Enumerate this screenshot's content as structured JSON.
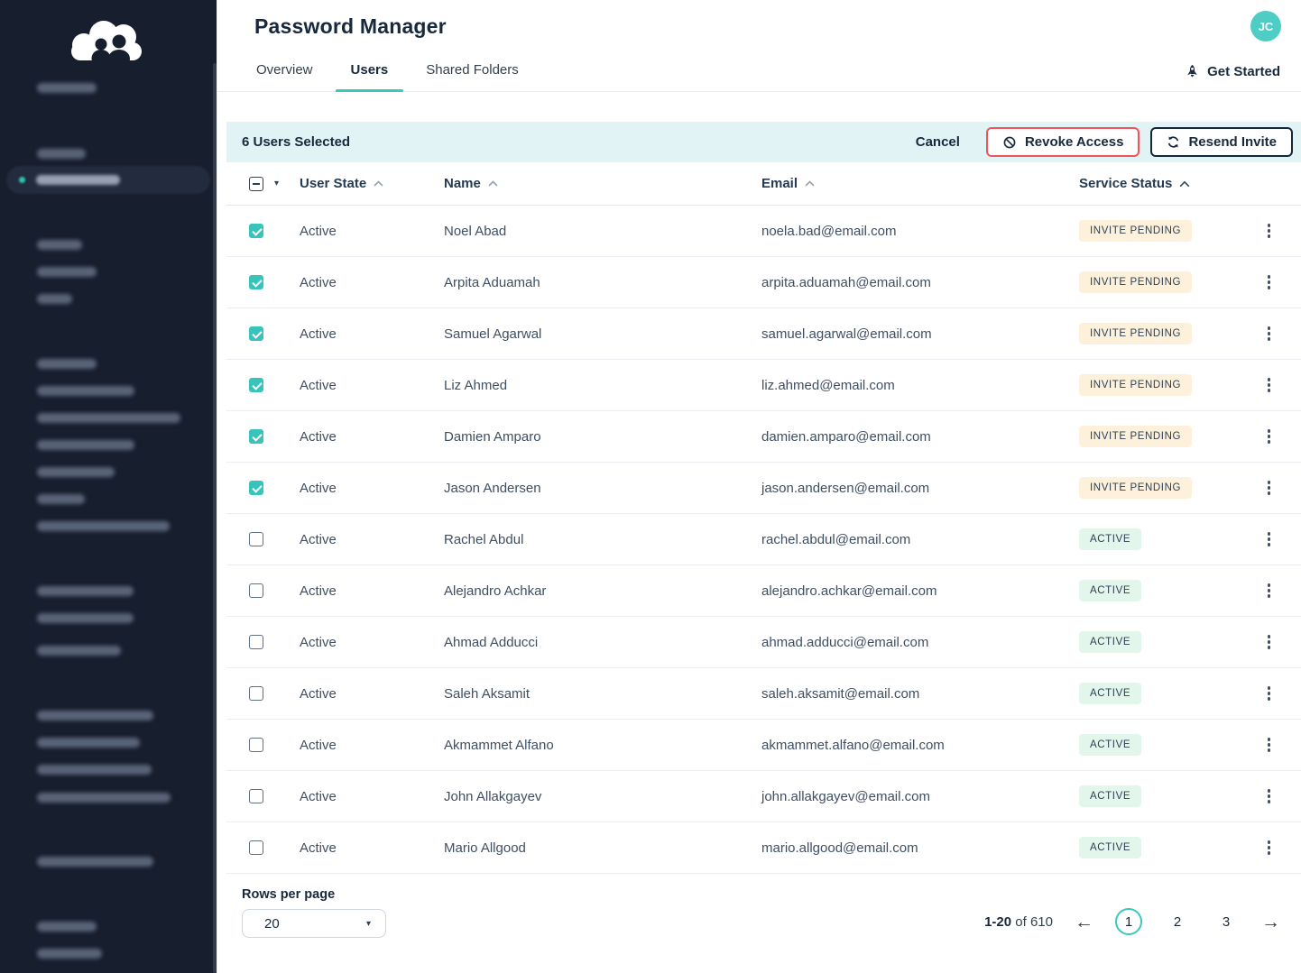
{
  "app": {
    "title": "Password Manager",
    "avatar_initials": "JC",
    "tabs": [
      {
        "label": "Overview",
        "active": false
      },
      {
        "label": "Users",
        "active": true
      },
      {
        "label": "Shared Folders",
        "active": false
      }
    ],
    "get_started_label": "Get Started"
  },
  "selection_bar": {
    "selected_text": "6 Users Selected",
    "cancel_label": "Cancel",
    "revoke_label": "Revoke Access",
    "resend_label": "Resend Invite"
  },
  "table": {
    "columns": [
      "User State",
      "Name",
      "Email",
      "Service Status"
    ],
    "users": [
      {
        "state": "Active",
        "name": "Noel Abad",
        "email": "noela.bad@email.com",
        "status_label": "INVITE PENDING",
        "status": "pending",
        "selected": true
      },
      {
        "state": "Active",
        "name": "Arpita Aduamah",
        "email": "arpita.aduamah@email.com",
        "status_label": "INVITE PENDING",
        "status": "pending",
        "selected": true
      },
      {
        "state": "Active",
        "name": "Samuel Agarwal",
        "email": "samuel.agarwal@email.com",
        "status_label": "INVITE PENDING",
        "status": "pending",
        "selected": true
      },
      {
        "state": "Active",
        "name": "Liz Ahmed",
        "email": "liz.ahmed@email.com",
        "status_label": "INVITE PENDING",
        "status": "pending",
        "selected": true
      },
      {
        "state": "Active",
        "name": "Damien Amparo",
        "email": "damien.amparo@email.com",
        "status_label": "INVITE PENDING",
        "status": "pending",
        "selected": true
      },
      {
        "state": "Active",
        "name": "Jason Andersen",
        "email": "jason.andersen@email.com",
        "status_label": "INVITE PENDING",
        "status": "pending",
        "selected": true
      },
      {
        "state": "Active",
        "name": "Rachel Abdul",
        "email": "rachel.abdul@email.com",
        "status_label": "ACTIVE",
        "status": "active",
        "selected": false
      },
      {
        "state": "Active",
        "name": "Alejandro Achkar",
        "email": "alejandro.achkar@email.com",
        "status_label": "ACTIVE",
        "status": "active",
        "selected": false
      },
      {
        "state": "Active",
        "name": "Ahmad Adducci",
        "email": "ahmad.adducci@email.com",
        "status_label": "ACTIVE",
        "status": "active",
        "selected": false
      },
      {
        "state": "Active",
        "name": "Saleh Aksamit",
        "email": "saleh.aksamit@email.com",
        "status_label": "ACTIVE",
        "status": "active",
        "selected": false
      },
      {
        "state": "Active",
        "name": "Akmammet Alfano",
        "email": "akmammet.alfano@email.com",
        "status_label": "ACTIVE",
        "status": "active",
        "selected": false
      },
      {
        "state": "Active",
        "name": "John Allakgayev",
        "email": "john.allakgayev@email.com",
        "status_label": "ACTIVE",
        "status": "active",
        "selected": false
      },
      {
        "state": "Active",
        "name": "Mario Allgood",
        "email": "mario.allgood@email.com",
        "status_label": "ACTIVE",
        "status": "active",
        "selected": false
      }
    ]
  },
  "footer": {
    "rows_per_page_label": "Rows per page",
    "rows_per_page_value": "20",
    "range_bold": "1-20",
    "range_rest": " of 610",
    "pages": [
      "1",
      "2",
      "3"
    ],
    "current_page": "1"
  },
  "colors": {
    "accent_teal": "#3cc8c0",
    "avatar_teal": "#4ecdc4",
    "danger_red": "#f0545a",
    "navy": "#17293d",
    "selection_bar_bg": "#e1f3f4",
    "badge_pending_bg": "#fdf1dc",
    "badge_active_bg": "#e3f6ec",
    "sidebar_bg": "#171e2e"
  }
}
